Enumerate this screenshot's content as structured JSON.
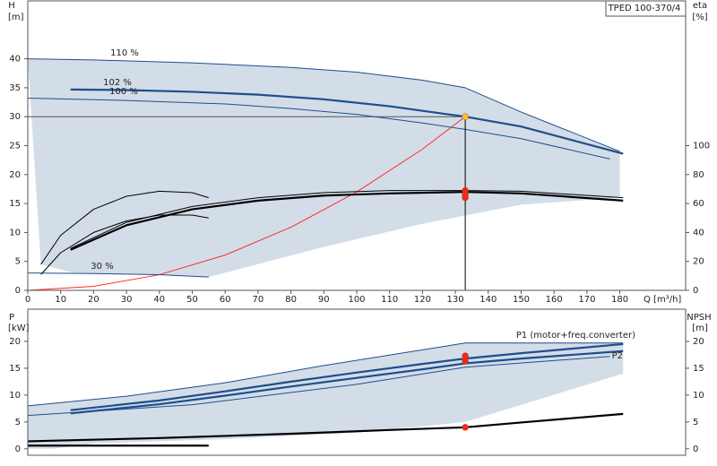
{
  "chart_data": [
    {
      "type": "line",
      "title": "TPED 100-370/4",
      "y_label": "H",
      "y_unit": "[m]",
      "y2_label": "eta",
      "y2_unit": "[%]",
      "x_label": "Q [m³/h]",
      "xlim": [
        0,
        200
      ],
      "xticks": [
        0,
        10,
        20,
        30,
        40,
        50,
        60,
        70,
        80,
        90,
        100,
        110,
        120,
        130,
        140,
        150,
        160,
        170,
        180
      ],
      "ylim": [
        0,
        50
      ],
      "yticks": [
        0,
        5,
        10,
        15,
        20,
        25,
        30,
        35,
        40
      ],
      "y2lim": [
        0,
        200
      ],
      "y2ticks": [
        0,
        20,
        40,
        60,
        80,
        100
      ],
      "grid": false,
      "annotations": [
        "110 %",
        "102 %",
        "100 %",
        "30 %"
      ],
      "series": [
        {
          "style": "area",
          "color": "#d3dde8",
          "x": [
            0,
            20,
            50,
            80,
            100,
            120,
            133,
            150,
            180,
            180,
            150,
            120,
            90,
            55,
            30,
            14,
            4,
            0
          ],
          "values": [
            40,
            39.8,
            39.3,
            38.5,
            37.7,
            36.3,
            35,
            30.8,
            24,
            16,
            14.8,
            11.5,
            7.5,
            2.3,
            2.8,
            3,
            4.5,
            40
          ]
        },
        {
          "style": "thin",
          "color": "#555555",
          "x": [
            0,
            133
          ],
          "values": [
            30,
            30
          ]
        },
        {
          "style": "thin",
          "color": "#ff2a2a",
          "x": [
            0,
            20,
            40,
            60,
            80,
            100,
            120,
            133
          ],
          "values": [
            0,
            0.7,
            2.7,
            6.1,
            10.9,
            17,
            24.4,
            30
          ]
        },
        {
          "style": "thin",
          "color": "#1f4e8c",
          "x": [
            0,
            20,
            50,
            80,
            100,
            120,
            133,
            150,
            180
          ],
          "values": [
            40,
            39.8,
            39.3,
            38.5,
            37.7,
            36.3,
            35,
            30.8,
            24
          ]
        },
        {
          "style": "thick",
          "color": "#1f4e8c",
          "x": [
            13,
            30,
            50,
            70,
            90,
            110,
            133,
            150,
            181
          ],
          "values": [
            34.7,
            34.6,
            34.3,
            33.8,
            33,
            31.8,
            30,
            28.3,
            23.6
          ]
        },
        {
          "style": "thin",
          "color": "#1f4e8c",
          "x": [
            0,
            30,
            60,
            80,
            100,
            120,
            133,
            150,
            177
          ],
          "values": [
            33.2,
            32.8,
            32.2,
            31.4,
            30.4,
            28.9,
            27.8,
            26.2,
            22.7
          ]
        },
        {
          "style": "thin",
          "color": "#1f4e8c",
          "x": [
            0,
            20,
            40,
            55
          ],
          "values": [
            3,
            2.9,
            2.7,
            2.3
          ]
        },
        {
          "style": "thin",
          "color": "#000000",
          "axis": "y2",
          "x": [
            4,
            10,
            20,
            30,
            40,
            50,
            55
          ],
          "values": [
            18,
            38,
            56,
            65,
            68.5,
            67.5,
            64
          ]
        },
        {
          "style": "thin",
          "color": "#000000",
          "axis": "y2",
          "x": [
            4,
            10,
            20,
            30,
            40,
            50,
            55
          ],
          "values": [
            11,
            26,
            40,
            48,
            52,
            52,
            50
          ]
        },
        {
          "style": "thin",
          "color": "#000000",
          "axis": "y2",
          "x": [
            13,
            30,
            50,
            70,
            90,
            110,
            133,
            150,
            181
          ],
          "values": [
            29,
            47,
            58,
            64,
            67.5,
            69,
            69,
            68.5,
            64
          ]
        },
        {
          "style": "thick",
          "color": "#000000",
          "axis": "y2",
          "x": [
            13,
            30,
            50,
            70,
            90,
            110,
            133,
            150,
            181
          ],
          "values": [
            28,
            45,
            56,
            62,
            65.5,
            67,
            68,
            67,
            62
          ]
        },
        {
          "style": "thin",
          "color": "#000000",
          "x": [
            133,
            133
          ],
          "values": [
            30,
            0
          ]
        },
        {
          "style": "points",
          "color": "#ff2020",
          "axis": "y2",
          "x": [
            133,
            133,
            133
          ],
          "values": [
            69,
            66,
            64
          ]
        },
        {
          "style": "points",
          "color": "#ffc020",
          "x": [
            133
          ],
          "values": [
            30
          ]
        }
      ]
    },
    {
      "type": "line",
      "y_label": "P",
      "y_unit": "[kW]",
      "y2_label": "NPSH",
      "y2_unit": "[m]",
      "xlim": [
        0,
        200
      ],
      "ylim": [
        -1.2,
        26
      ],
      "yticks": [
        0,
        5,
        10,
        15,
        20
      ],
      "y2lim": [
        -1.2,
        26
      ],
      "y2ticks": [
        0,
        5,
        10,
        15,
        20
      ],
      "grid": false,
      "annotations": [
        "P1 (motor+freq.converter)",
        "P2"
      ],
      "series": [
        {
          "style": "area",
          "color": "#d3dde8",
          "x": [
            0,
            30,
            60,
            90,
            133,
            181,
            181,
            133,
            100,
            60,
            20,
            8,
            0
          ],
          "values": [
            8,
            9.8,
            12.3,
            15.5,
            19.8,
            19.8,
            14,
            5,
            3,
            1.8,
            1,
            0,
            0
          ]
        },
        {
          "style": "thin",
          "color": "#1f4e8c",
          "x": [
            0,
            30,
            60,
            90,
            133,
            181
          ],
          "values": [
            8,
            9.8,
            12.3,
            15.5,
            19.7,
            19.7
          ]
        },
        {
          "style": "thick",
          "color": "#1f4e8c",
          "x": [
            13,
            40,
            60,
            80,
            100,
            120,
            133,
            150,
            181
          ],
          "values": [
            7.2,
            9,
            10.7,
            12.5,
            14.2,
            15.8,
            16.8,
            17.8,
            19.5
          ]
        },
        {
          "style": "thick",
          "color": "#1f4e8c",
          "x": [
            13,
            40,
            60,
            80,
            100,
            120,
            133,
            150,
            181
          ],
          "values": [
            6.6,
            8.3,
            9.9,
            11.6,
            13.2,
            14.8,
            15.9,
            16.8,
            18.2
          ]
        },
        {
          "style": "thin",
          "color": "#1f4e8c",
          "x": [
            0,
            50,
            100,
            133,
            177
          ],
          "values": [
            6.2,
            8.2,
            12,
            15.2,
            17.2
          ]
        },
        {
          "style": "thick",
          "color": "#000000",
          "axis": "y2",
          "x": [
            0,
            40,
            80,
            110,
            133,
            150,
            181
          ],
          "values": [
            1.4,
            2,
            2.8,
            3.5,
            4,
            4.9,
            6.5
          ]
        },
        {
          "style": "thick",
          "color": "#000000",
          "x": [
            0,
            55
          ],
          "values": [
            0.6,
            0.6
          ]
        },
        {
          "style": "points",
          "color": "#ff2020",
          "x": [
            133,
            133
          ],
          "values": [
            17.3,
            16.3
          ]
        },
        {
          "style": "points",
          "color": "#ff2020",
          "axis": "y2",
          "x": [
            133
          ],
          "values": [
            4
          ]
        }
      ]
    }
  ]
}
